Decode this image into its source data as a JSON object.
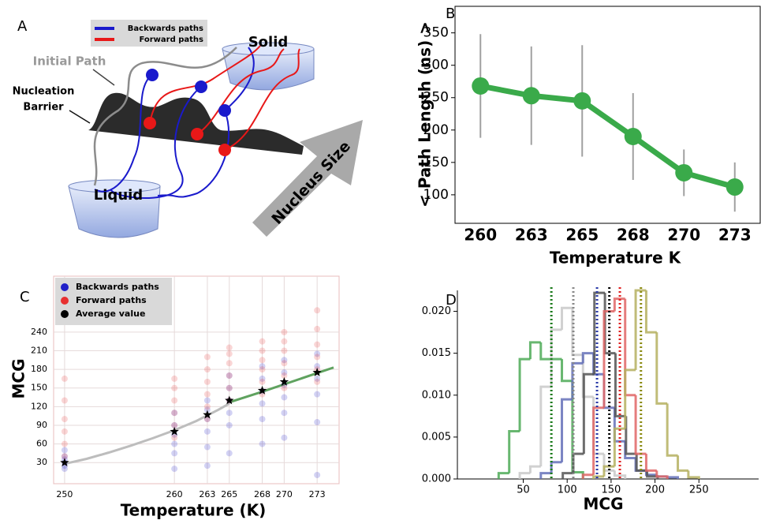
{
  "diagram": {
    "panel": "A",
    "legend": [
      "Backwards paths",
      "Forward paths"
    ],
    "solid": "Solid",
    "liquid": "Liquid",
    "initial_path": "Initial Path",
    "barrier": [
      "Nucleation",
      "Barrier"
    ],
    "arrow": "Nucleus Size"
  },
  "chart_data": [
    {
      "type": "line",
      "panel": "B",
      "y_label": "< Path Length (ns) >",
      "x_label": "Temperature K",
      "categories": [
        "260",
        "263",
        "265",
        "268",
        "270",
        "273"
      ],
      "values": [
        268,
        253,
        245,
        190,
        134,
        112
      ],
      "errors": [
        80,
        76,
        86,
        67,
        36,
        38
      ],
      "color": "#3aaa4a",
      "ylim": [
        56,
        391
      ],
      "yticks": [
        100,
        150,
        200,
        250,
        300,
        350
      ]
    },
    {
      "type": "scatter",
      "panel": "C",
      "y_label": "MCG",
      "x_label": "Temperature (K)",
      "series": [
        {
          "name": "Backwards paths",
          "color": "#2020c8",
          "x": [
            250,
            250,
            250,
            250,
            250,
            250,
            260,
            260,
            260,
            260,
            260,
            260,
            263,
            263,
            263,
            263,
            263,
            263,
            265,
            265,
            265,
            265,
            265,
            265,
            268,
            268,
            268,
            268,
            268,
            268,
            270,
            270,
            270,
            270,
            270,
            270,
            273,
            273,
            273,
            273,
            273,
            273
          ],
          "values": [
            20,
            25,
            30,
            35,
            40,
            50,
            20,
            45,
            60,
            75,
            90,
            110,
            25,
            55,
            80,
            100,
            115,
            130,
            45,
            90,
            110,
            130,
            150,
            170,
            60,
            100,
            125,
            145,
            165,
            185,
            70,
            110,
            135,
            155,
            175,
            195,
            10,
            95,
            140,
            165,
            185,
            205
          ]
        },
        {
          "name": "Forward paths",
          "color": "#e83030",
          "x": [
            250,
            250,
            250,
            250,
            250,
            250,
            260,
            260,
            260,
            260,
            260,
            260,
            263,
            263,
            263,
            263,
            263,
            263,
            265,
            265,
            265,
            265,
            265,
            265,
            268,
            268,
            268,
            268,
            268,
            268,
            270,
            270,
            270,
            270,
            270,
            270,
            273,
            273,
            273,
            273,
            273,
            273
          ],
          "values": [
            40,
            60,
            80,
            100,
            130,
            165,
            70,
            90,
            110,
            130,
            150,
            165,
            100,
            120,
            140,
            160,
            180,
            200,
            130,
            150,
            170,
            190,
            205,
            215,
            140,
            160,
            180,
            195,
            210,
            225,
            150,
            170,
            190,
            210,
            225,
            240,
            160,
            180,
            200,
            220,
            245,
            275
          ]
        },
        {
          "name": "Average value",
          "color": "#000000",
          "x": [
            250,
            260,
            263,
            265,
            268,
            270,
            273
          ],
          "values": [
            30,
            80,
            107,
            130,
            146,
            160,
            175
          ]
        }
      ],
      "fits": [
        {
          "color": "#bdbdbd",
          "x": [
            250,
            252,
            254,
            256,
            258,
            260,
            262,
            264,
            265
          ],
          "values": [
            28,
            36,
            46,
            57,
            69,
            82,
            97,
            115,
            125
          ]
        },
        {
          "color": "#5fa25f",
          "x": [
            265,
            268,
            270,
            273,
            274.5
          ],
          "values": [
            127,
            144,
            156,
            174,
            183
          ]
        }
      ],
      "xlim": [
        249,
        275
      ],
      "xticks": [
        250,
        260,
        263,
        265,
        268,
        270,
        273
      ],
      "ylim": [
        -4,
        330
      ],
      "yticks": [
        30,
        60,
        90,
        120,
        150,
        180,
        210,
        240
      ],
      "grid": true
    },
    {
      "type": "histogram",
      "panel": "D",
      "x_label": "MCG",
      "series": [
        {
          "color": "#4daa57",
          "mean_color": "#1a7a1a",
          "mean": 82,
          "bins": [
            22,
            34,
            46,
            58,
            70,
            82,
            94,
            106,
            118
          ],
          "values": [
            0.0007,
            0.0057,
            0.0143,
            0.0163,
            0.0143,
            0.0143,
            0.0117,
            0.0008
          ]
        },
        {
          "color": "#c9c9c9",
          "mean_color": "#888888",
          "mean": 107,
          "bins": [
            46,
            58,
            70,
            82,
            94,
            106,
            118,
            130,
            142,
            154,
            166
          ],
          "values": [
            0.0007,
            0.0015,
            0.011,
            0.0178,
            0.0204,
            0.0148,
            0.0098,
            0.003,
            0.001,
            0.0004
          ]
        },
        {
          "color": "#6470b8",
          "mean_color": "#2a3aa8",
          "mean": 134,
          "bins": [
            70,
            82,
            94,
            106,
            118,
            130,
            142,
            154,
            166,
            178,
            190,
            202,
            214,
            226
          ],
          "values": [
            0.0007,
            0.002,
            0.0095,
            0.0138,
            0.015,
            0.0125,
            0.0085,
            0.0045,
            0.0025,
            0.001,
            0.0005,
            0.0003,
            0.0002
          ]
        },
        {
          "color": "#555555",
          "mean_color": "#000000",
          "mean": 148,
          "bins": [
            95,
            107,
            119,
            131,
            143,
            155,
            167,
            179,
            191,
            203
          ],
          "values": [
            0.0007,
            0.003,
            0.0125,
            0.0222,
            0.015,
            0.0075,
            0.003,
            0.001,
            0.0003
          ]
        },
        {
          "color": "#e06666",
          "mean_color": "#e02020",
          "mean": 160,
          "bins": [
            118,
            130,
            142,
            154,
            166,
            178,
            190,
            202,
            214
          ],
          "values": [
            0.0005,
            0.0085,
            0.02,
            0.0215,
            0.01,
            0.003,
            0.001,
            0.0003
          ]
        },
        {
          "color": "#b5b060",
          "mean_color": "#8a8a10",
          "mean": 184,
          "bins": [
            130,
            142,
            154,
            166,
            178,
            190,
            202,
            214,
            226,
            238,
            250
          ],
          "values": [
            0.0003,
            0.0015,
            0.006,
            0.013,
            0.0225,
            0.0175,
            0.009,
            0.0028,
            0.001,
            0.0002
          ]
        }
      ],
      "xlim": [
        -25,
        318
      ],
      "xticks": [
        50,
        100,
        150,
        200,
        250
      ],
      "ylim": [
        0,
        0.0225
      ],
      "yticks": [
        {
          "value": 0,
          "label": "0.000"
        },
        {
          "value": 0.005,
          "label": "0.005"
        },
        {
          "value": 0.01,
          "label": "0.010"
        },
        {
          "value": 0.015,
          "label": "0.015"
        },
        {
          "value": 0.02,
          "label": "0.020"
        }
      ]
    }
  ]
}
